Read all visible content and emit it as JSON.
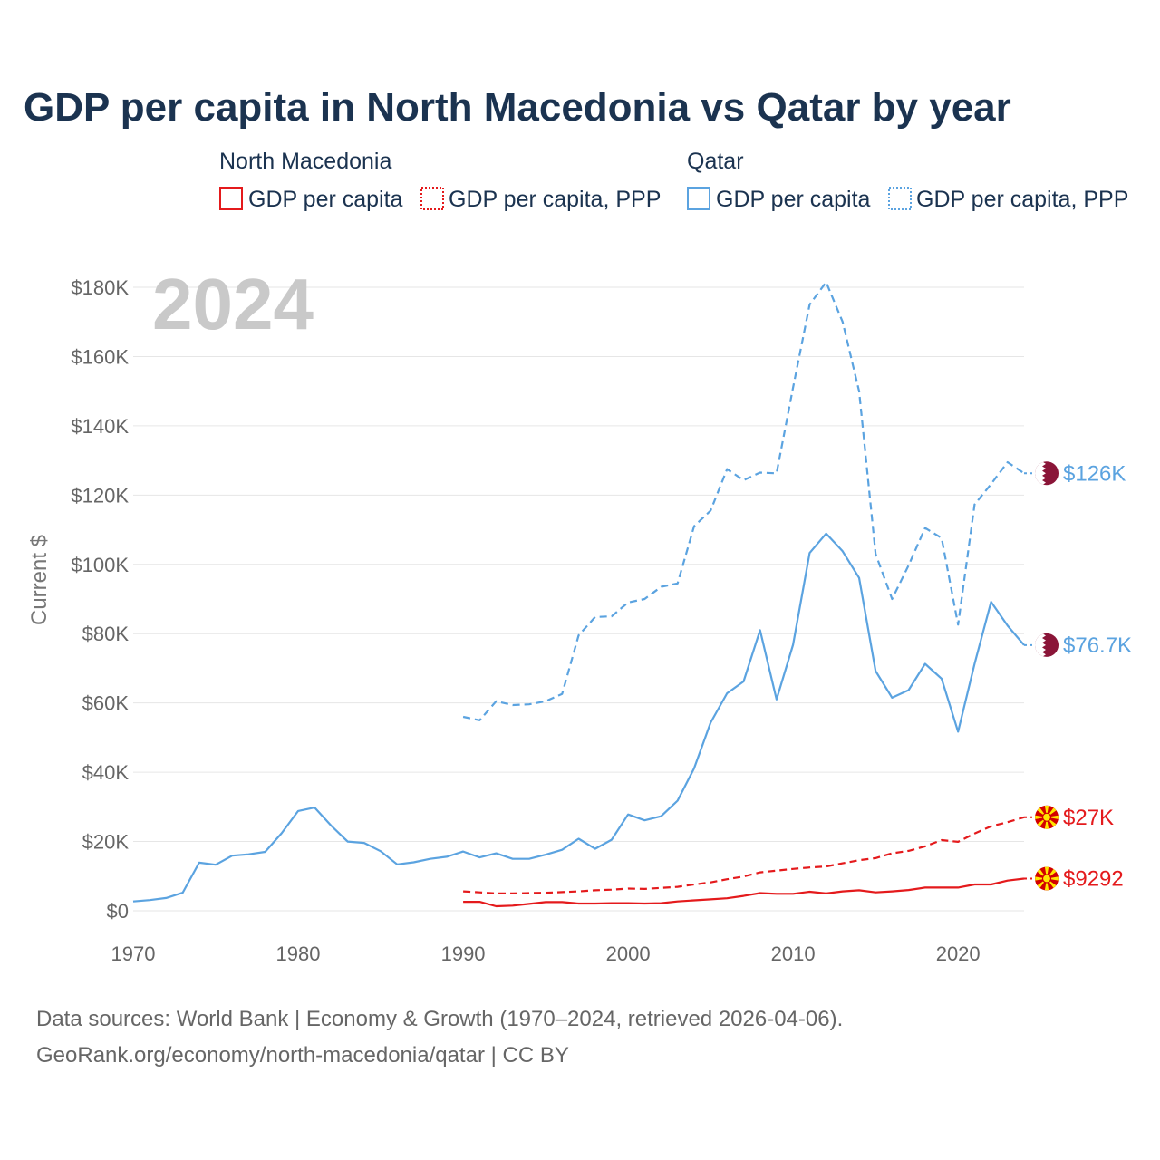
{
  "chart_data": {
    "type": "line",
    "title": "GDP per capita in North Macedonia vs Qatar by year",
    "year_label": "2024",
    "ylabel": "Current $",
    "xlabel": "",
    "xlim": [
      1970,
      2024
    ],
    "ylim": [
      0,
      180000
    ],
    "x_ticks": [
      {
        "value": 1970,
        "label": "1970"
      },
      {
        "value": 1980,
        "label": "1980"
      },
      {
        "value": 1990,
        "label": "1990"
      },
      {
        "value": 2000,
        "label": "2000"
      },
      {
        "value": 2010,
        "label": "2010"
      },
      {
        "value": 2020,
        "label": "2020"
      }
    ],
    "y_ticks": [
      {
        "value": 0,
        "label": "$0"
      },
      {
        "value": 20000,
        "label": "$20K"
      },
      {
        "value": 40000,
        "label": "$40K"
      },
      {
        "value": 60000,
        "label": "$60K"
      },
      {
        "value": 80000,
        "label": "$80K"
      },
      {
        "value": 100000,
        "label": "$100K"
      },
      {
        "value": 120000,
        "label": "$120K"
      },
      {
        "value": 140000,
        "label": "$140K"
      },
      {
        "value": 160000,
        "label": "$160K"
      },
      {
        "value": 180000,
        "label": "$180K"
      }
    ],
    "grid": true,
    "legend": {
      "placement": "top",
      "groups": [
        {
          "name": "North Macedonia",
          "items": [
            {
              "label": "GDP per capita",
              "style": "solid",
              "color": "#e41a1c"
            },
            {
              "label": "GDP per capita, PPP",
              "style": "dotted",
              "color": "#e41a1c"
            }
          ]
        },
        {
          "name": "Qatar",
          "items": [
            {
              "label": "GDP per capita",
              "style": "solid",
              "color": "#5ba3e0"
            },
            {
              "label": "GDP per capita, PPP",
              "style": "dotted",
              "color": "#5ba3e0"
            }
          ]
        }
      ]
    },
    "series": [
      {
        "name": "Qatar GDP per capita",
        "country": "Qatar",
        "color": "#5ba3e0",
        "dash": "solid",
        "end_label": "$76.7K",
        "x": [
          1970,
          1971,
          1972,
          1973,
          1974,
          1975,
          1976,
          1977,
          1978,
          1979,
          1980,
          1981,
          1982,
          1983,
          1984,
          1985,
          1986,
          1987,
          1988,
          1989,
          1990,
          1991,
          1992,
          1993,
          1994,
          1995,
          1996,
          1997,
          1998,
          1999,
          2000,
          2001,
          2002,
          2003,
          2004,
          2005,
          2006,
          2007,
          2008,
          2009,
          2010,
          2011,
          2012,
          2013,
          2014,
          2015,
          2016,
          2017,
          2018,
          2019,
          2020,
          2021,
          2022,
          2023,
          2024
        ],
        "values": [
          2700,
          3100,
          3700,
          5200,
          13900,
          13300,
          15900,
          16300,
          17000,
          22400,
          28800,
          29800,
          24600,
          20000,
          19600,
          17200,
          13400,
          14000,
          15000,
          15600,
          17100,
          15400,
          16600,
          15000,
          15000,
          16200,
          17600,
          20800,
          17900,
          20500,
          27800,
          26100,
          27300,
          31800,
          41100,
          54300,
          62800,
          66200,
          81000,
          61000,
          76800,
          103300,
          108900,
          103800,
          96100,
          69200,
          61500,
          63700,
          71300,
          67000,
          51700,
          71300,
          89200,
          82300,
          76700
        ]
      },
      {
        "name": "Qatar GDP per capita, PPP",
        "country": "Qatar",
        "color": "#5ba3e0",
        "dash": "dashed",
        "end_label": "$126K",
        "x": [
          1990,
          1991,
          1992,
          1993,
          1994,
          1995,
          1996,
          1997,
          1998,
          1999,
          2000,
          2001,
          2002,
          2003,
          2004,
          2005,
          2006,
          2007,
          2008,
          2009,
          2010,
          2011,
          2012,
          2013,
          2014,
          2015,
          2016,
          2017,
          2018,
          2019,
          2020,
          2021,
          2022,
          2023,
          2024
        ],
        "values": [
          56000,
          55000,
          60500,
          59400,
          59600,
          60500,
          62600,
          79500,
          84800,
          85000,
          89000,
          90000,
          93500,
          94500,
          111000,
          115500,
          127500,
          124300,
          126500,
          126300,
          151000,
          175000,
          181500,
          170000,
          150000,
          103000,
          90000,
          99700,
          110500,
          107600,
          82600,
          117300,
          123200,
          129500,
          126300
        ]
      },
      {
        "name": "North Macedonia GDP per capita",
        "country": "North Macedonia",
        "color": "#e41a1c",
        "dash": "solid",
        "end_label": "$9292",
        "x": [
          1990,
          1991,
          1992,
          1993,
          1994,
          1995,
          1996,
          1997,
          1998,
          1999,
          2000,
          2001,
          2002,
          2003,
          2004,
          2005,
          2006,
          2007,
          2008,
          2009,
          2010,
          2011,
          2012,
          2013,
          2014,
          2015,
          2016,
          2017,
          2018,
          2019,
          2020,
          2021,
          2022,
          2023,
          2024
        ],
        "values": [
          2600,
          2600,
          1300,
          1500,
          2000,
          2500,
          2500,
          2100,
          2100,
          2200,
          2200,
          2100,
          2200,
          2700,
          3000,
          3300,
          3600,
          4300,
          5100,
          4900,
          4900,
          5500,
          5000,
          5600,
          5900,
          5300,
          5600,
          6000,
          6700,
          6700,
          6700,
          7600,
          7600,
          8700,
          9292
        ]
      },
      {
        "name": "North Macedonia GDP per capita, PPP",
        "country": "North Macedonia",
        "color": "#e41a1c",
        "dash": "dashed",
        "end_label": "$27K",
        "x": [
          1990,
          1991,
          1992,
          1993,
          1994,
          1995,
          1996,
          1997,
          1998,
          1999,
          2000,
          2001,
          2002,
          2003,
          2004,
          2005,
          2006,
          2007,
          2008,
          2009,
          2010,
          2011,
          2012,
          2013,
          2014,
          2015,
          2016,
          2017,
          2018,
          2019,
          2020,
          2021,
          2022,
          2023,
          2024
        ],
        "values": [
          5600,
          5300,
          5000,
          5000,
          5100,
          5200,
          5400,
          5600,
          5900,
          6100,
          6400,
          6300,
          6600,
          6900,
          7600,
          8200,
          9100,
          9900,
          11100,
          11600,
          12100,
          12500,
          12800,
          13700,
          14600,
          15200,
          16600,
          17300,
          18600,
          20400,
          19900,
          22300,
          24400,
          25600,
          27000
        ]
      }
    ],
    "source_lines": [
      "Data sources: World Bank | Economy & Growth (1970–2024, retrieved 2026-04-06).",
      "GeoRank.org/economy/north-macedonia/qatar | CC BY"
    ]
  }
}
